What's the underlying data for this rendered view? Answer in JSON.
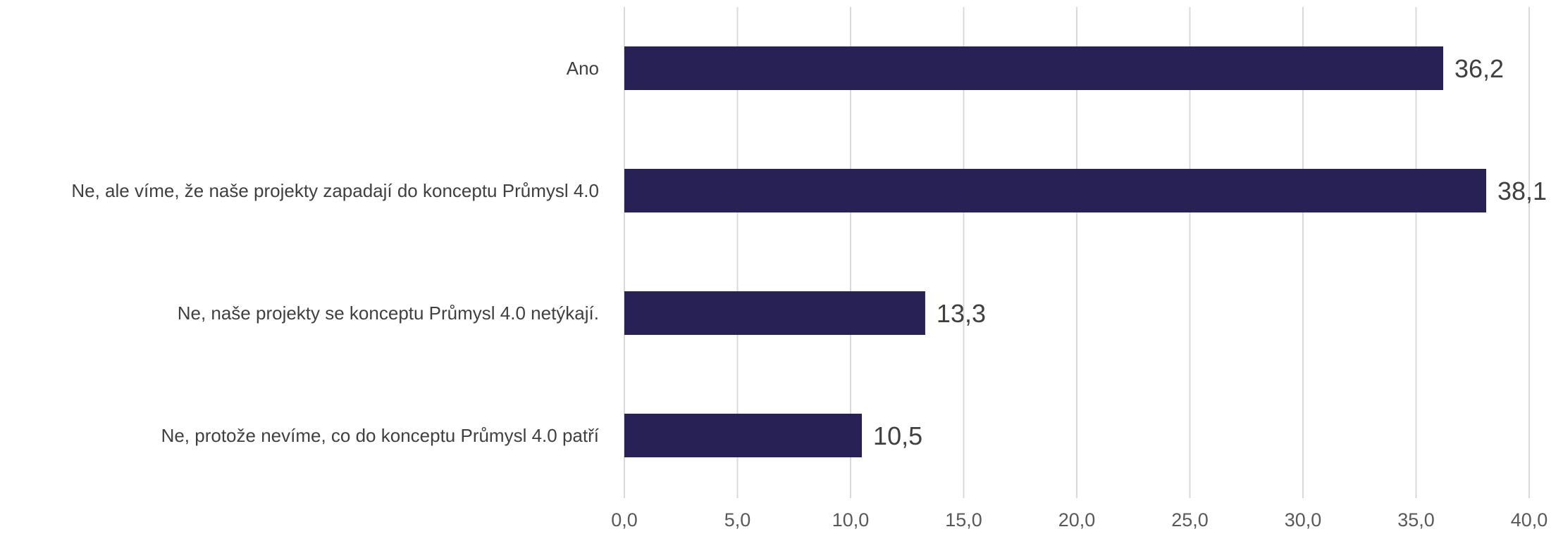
{
  "chart_data": {
    "type": "bar",
    "orientation": "horizontal",
    "title": "",
    "xlabel": "",
    "ylabel": "",
    "categories": [
      "Ano",
      "Ne, ale víme, že naše projekty zapadají do konceptu Průmysl 4.0",
      "Ne, naše projekty se konceptu Průmysl 4.0 netýkají.",
      "Ne, protože nevíme, co do konceptu Průmysl 4.0 patří"
    ],
    "values": [
      36.2,
      38.1,
      13.3,
      10.5
    ],
    "value_labels": [
      "36,2",
      "38,1",
      "13,3",
      "10,5"
    ],
    "xlim": [
      0,
      40
    ],
    "x_ticks": [
      0,
      5,
      10,
      15,
      20,
      25,
      30,
      35,
      40
    ],
    "x_tick_labels": [
      "0,0",
      "5,0",
      "10,0",
      "15,0",
      "20,0",
      "25,0",
      "30,0",
      "35,0",
      "40,0"
    ],
    "grid": "vertical",
    "legend": "none",
    "colors": {
      "bar": "#282156",
      "grid": "#d9d9d9",
      "category_text": "#404040",
      "tick_text": "#595959",
      "value_text": "#404040"
    }
  }
}
